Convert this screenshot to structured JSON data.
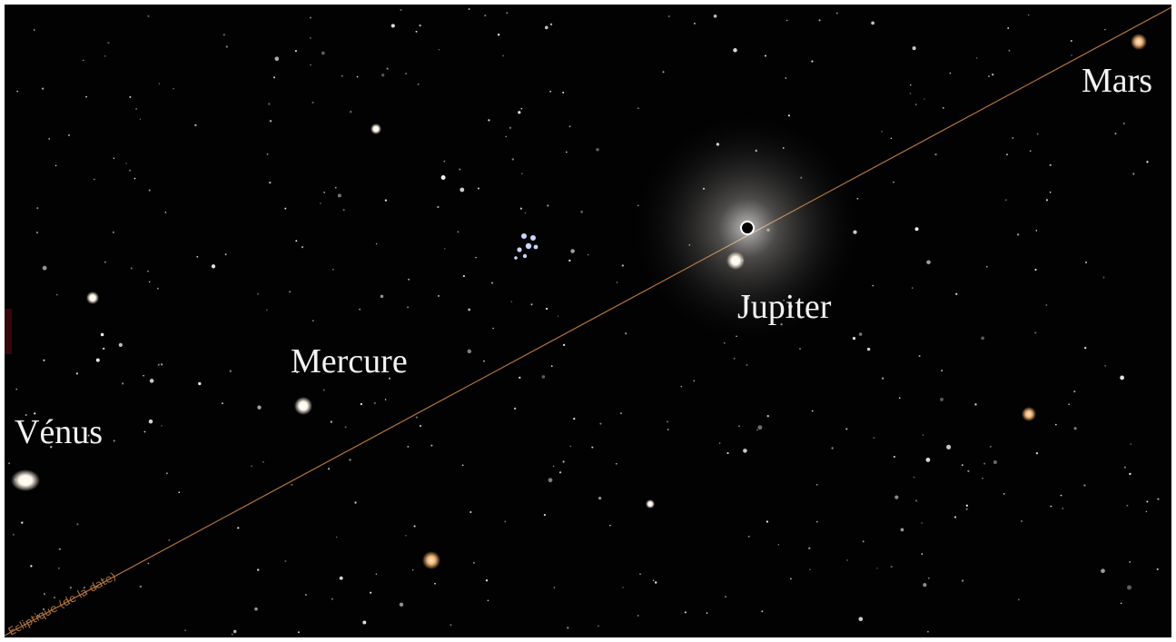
{
  "planets": [
    {
      "label": "Vénus"
    },
    {
      "label": "Mercure"
    },
    {
      "label": "Jupiter"
    },
    {
      "label": "Mars"
    }
  ],
  "ecliptic_label": "Ecliptique (de la date)"
}
